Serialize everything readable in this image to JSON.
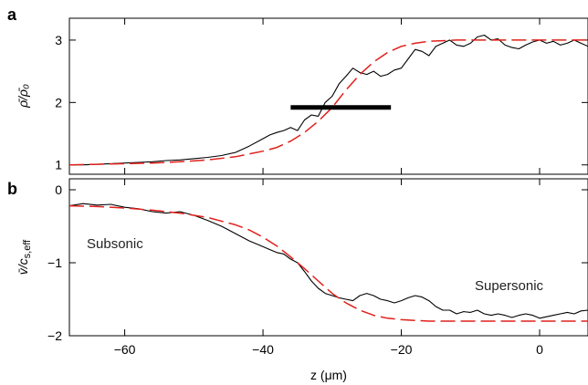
{
  "chart_data": [
    {
      "panel": "a",
      "type": "line",
      "ylabel": "ρ̄/ρ̄₀",
      "xlim": [
        -68,
        7
      ],
      "ylim": [
        0.85,
        3.35
      ],
      "yticks": [
        1,
        2,
        3
      ],
      "series": [
        {
          "style": "solid-black",
          "x": [
            -68,
            -66,
            -64,
            -62,
            -60,
            -58,
            -56,
            -54,
            -52,
            -50,
            -48,
            -46,
            -44,
            -42,
            -40,
            -39,
            -38,
            -37,
            -36,
            -35,
            -34,
            -33,
            -32,
            -31,
            -30,
            -29,
            -28,
            -27,
            -26,
            -25,
            -24,
            -23,
            -22,
            -21,
            -20,
            -19,
            -18,
            -17,
            -16,
            -15,
            -14,
            -13,
            -12,
            -11,
            -10,
            -9,
            -8,
            -7,
            -6,
            -5,
            -4,
            -3,
            -2,
            -1,
            0,
            1,
            2,
            3,
            4,
            5,
            6,
            7
          ],
          "y": [
            1.0,
            1.0,
            1.01,
            1.02,
            1.03,
            1.04,
            1.05,
            1.07,
            1.08,
            1.1,
            1.12,
            1.15,
            1.2,
            1.3,
            1.42,
            1.48,
            1.52,
            1.55,
            1.6,
            1.55,
            1.72,
            1.8,
            1.78,
            2.0,
            2.1,
            2.3,
            2.42,
            2.55,
            2.48,
            2.45,
            2.5,
            2.42,
            2.45,
            2.52,
            2.55,
            2.7,
            2.85,
            2.82,
            2.75,
            2.9,
            2.95,
            3.0,
            2.92,
            2.9,
            2.95,
            3.05,
            3.08,
            3.0,
            3.02,
            2.92,
            2.88,
            2.86,
            2.92,
            2.97,
            3.0,
            2.95,
            2.98,
            2.92,
            2.95,
            3.0,
            2.95,
            2.9
          ]
        },
        {
          "style": "dashed-red",
          "x": [
            -68,
            -64,
            -60,
            -56,
            -52,
            -48,
            -44,
            -40,
            -38,
            -36,
            -34,
            -32,
            -30,
            -28,
            -26,
            -24,
            -22,
            -20,
            -18,
            -16,
            -14,
            -12,
            -10,
            -6,
            -2,
            2,
            7
          ],
          "y": [
            1.0,
            1.01,
            1.02,
            1.03,
            1.05,
            1.08,
            1.13,
            1.22,
            1.28,
            1.38,
            1.52,
            1.7,
            1.92,
            2.2,
            2.45,
            2.65,
            2.8,
            2.9,
            2.95,
            2.98,
            2.99,
            3.0,
            3.0,
            3.0,
            3.0,
            3.0,
            3.0
          ]
        }
      ],
      "bar": {
        "x0": -36,
        "x1": -21.5,
        "y": 1.92
      }
    },
    {
      "panel": "b",
      "type": "line",
      "ylabel": "v̄/c",
      "ylabel_sub": "s,eff",
      "xlabel": "z (μm)",
      "xlim": [
        -68,
        7
      ],
      "ylim": [
        -2,
        0.15
      ],
      "yticks": [
        -2,
        -1,
        0
      ],
      "xticks": [
        -60,
        -40,
        -20,
        0
      ],
      "annotations": {
        "subsonic": "Subsonic",
        "supersonic": "Supersonic"
      },
      "series": [
        {
          "style": "solid-black",
          "x": [
            -68,
            -66,
            -64,
            -62,
            -60,
            -58,
            -56,
            -54,
            -52,
            -50,
            -48,
            -46,
            -44,
            -42,
            -40,
            -39,
            -38,
            -37,
            -36,
            -35,
            -34,
            -33,
            -32,
            -31,
            -30,
            -29,
            -28,
            -27,
            -26,
            -25,
            -24,
            -23,
            -22,
            -21,
            -20,
            -19,
            -18,
            -17,
            -16,
            -15,
            -14,
            -13,
            -12,
            -11,
            -10,
            -9,
            -8,
            -7,
            -6,
            -5,
            -4,
            -3,
            -2,
            -1,
            0,
            1,
            2,
            3,
            4,
            5,
            6,
            7
          ],
          "y": [
            -0.22,
            -0.19,
            -0.21,
            -0.2,
            -0.24,
            -0.26,
            -0.3,
            -0.32,
            -0.3,
            -0.35,
            -0.42,
            -0.5,
            -0.6,
            -0.7,
            -0.78,
            -0.82,
            -0.86,
            -0.88,
            -0.95,
            -1.0,
            -1.12,
            -1.25,
            -1.35,
            -1.42,
            -1.45,
            -1.48,
            -1.5,
            -1.52,
            -1.45,
            -1.42,
            -1.45,
            -1.5,
            -1.52,
            -1.55,
            -1.52,
            -1.48,
            -1.45,
            -1.47,
            -1.52,
            -1.6,
            -1.65,
            -1.65,
            -1.7,
            -1.67,
            -1.68,
            -1.65,
            -1.7,
            -1.72,
            -1.7,
            -1.72,
            -1.75,
            -1.72,
            -1.7,
            -1.72,
            -1.76,
            -1.74,
            -1.72,
            -1.7,
            -1.68,
            -1.7,
            -1.66,
            -1.65
          ]
        },
        {
          "style": "dashed-red",
          "x": [
            -68,
            -64,
            -60,
            -56,
            -52,
            -48,
            -44,
            -42,
            -40,
            -38,
            -36,
            -34,
            -32,
            -30,
            -28,
            -26,
            -24,
            -22,
            -20,
            -18,
            -16,
            -14,
            -12,
            -8,
            -4,
            0,
            7
          ],
          "y": [
            -0.22,
            -0.23,
            -0.25,
            -0.28,
            -0.32,
            -0.38,
            -0.48,
            -0.55,
            -0.65,
            -0.77,
            -0.92,
            -1.08,
            -1.25,
            -1.42,
            -1.55,
            -1.65,
            -1.72,
            -1.76,
            -1.78,
            -1.79,
            -1.8,
            -1.8,
            -1.8,
            -1.8,
            -1.8,
            -1.8,
            -1.8
          ]
        }
      ]
    }
  ]
}
